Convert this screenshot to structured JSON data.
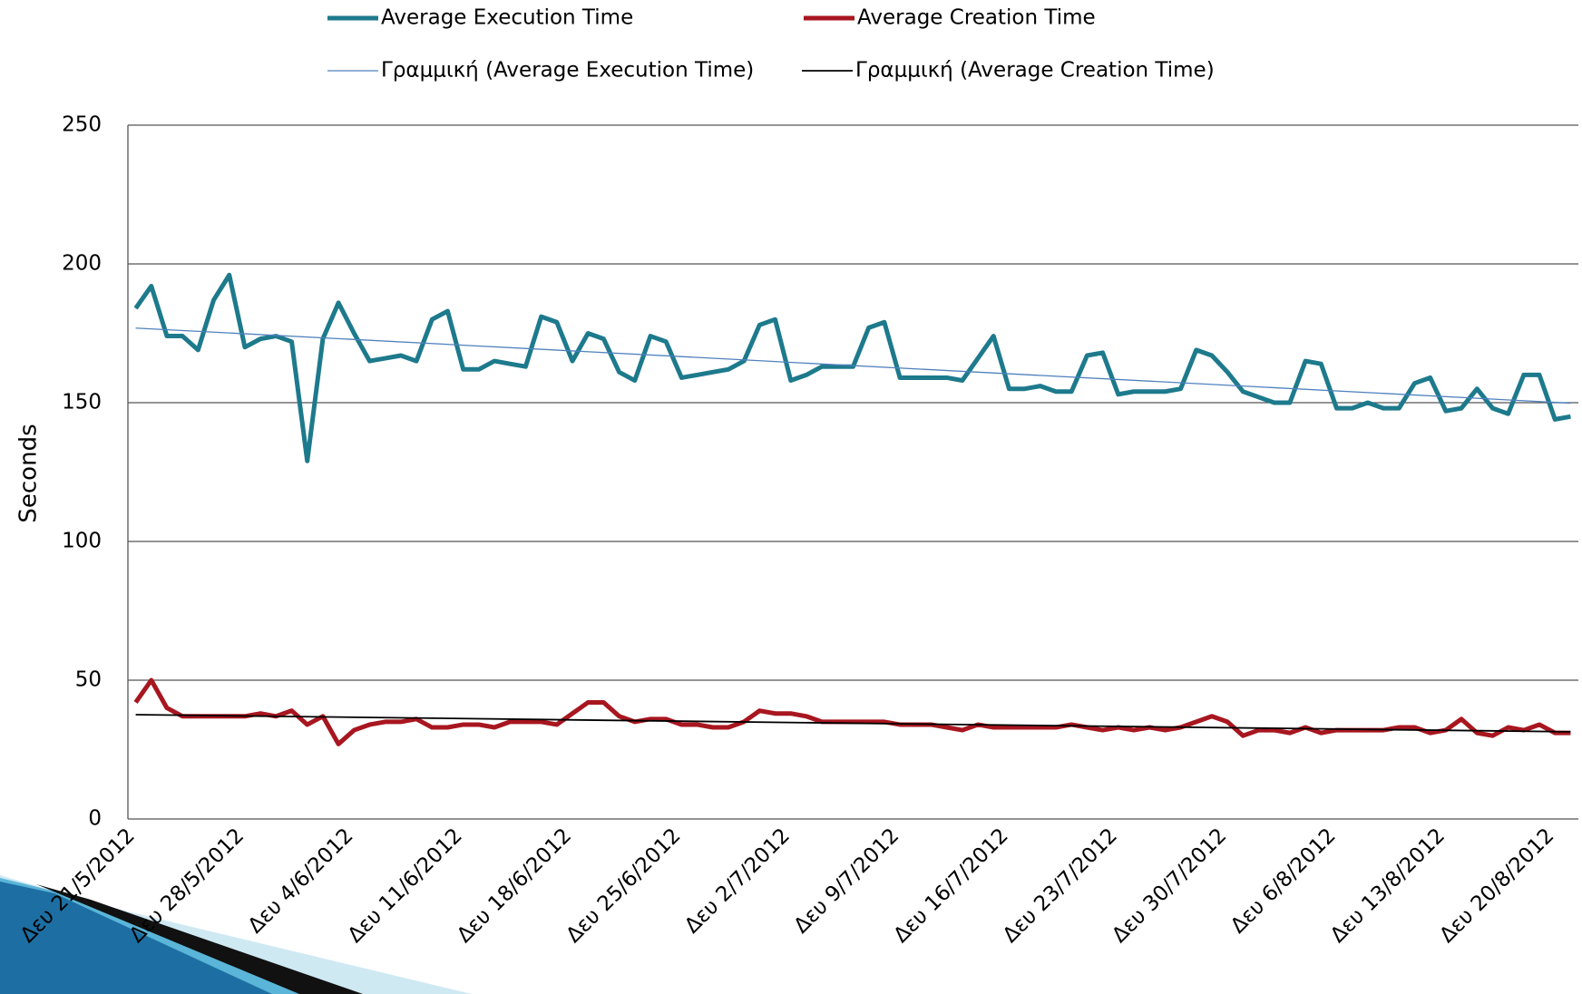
{
  "chart_data": {
    "type": "line",
    "y_label": "Seconds",
    "categories": [
      "Δευ 21/5/2012",
      null,
      null,
      null,
      null,
      null,
      null,
      "Δευ 28/5/2012",
      null,
      null,
      null,
      null,
      null,
      null,
      "Δευ 4/6/2012",
      null,
      null,
      null,
      null,
      null,
      null,
      "Δευ 11/6/2012",
      null,
      null,
      null,
      null,
      null,
      null,
      "Δευ 18/6/2012",
      null,
      null,
      null,
      null,
      null,
      null,
      "Δευ 25/6/2012",
      null,
      null,
      null,
      null,
      null,
      null,
      "Δευ 2/7/2012",
      null,
      null,
      null,
      null,
      null,
      null,
      "Δευ 9/7/2012",
      null,
      null,
      null,
      null,
      null,
      null,
      "Δευ 16/7/2012",
      null,
      null,
      null,
      null,
      null,
      null,
      "Δευ 23/7/2012",
      null,
      null,
      null,
      null,
      null,
      null,
      "Δευ 30/7/2012",
      null,
      null,
      null,
      null,
      null,
      null,
      "Δευ 6/8/2012",
      null,
      null,
      null,
      null,
      null,
      null,
      "Δευ 13/8/2012",
      null,
      null,
      null,
      null,
      null,
      null,
      "Δευ 20/8/2012",
      null
    ],
    "series": [
      {
        "name": "Average Execution Time",
        "color": "#1d7a8c",
        "values": [
          184,
          192,
          174,
          174,
          169,
          187,
          196,
          170,
          173,
          174,
          172,
          129,
          173,
          186,
          175,
          165,
          166,
          167,
          165,
          180,
          183,
          162,
          162,
          165,
          164,
          163,
          181,
          179,
          165,
          175,
          173,
          161,
          158,
          174,
          172,
          159,
          160,
          161,
          162,
          165,
          178,
          180,
          158,
          160,
          163,
          163,
          163,
          177,
          179,
          159,
          159,
          159,
          159,
          158,
          166,
          174,
          155,
          155,
          156,
          154,
          154,
          167,
          168,
          153,
          154,
          154,
          154,
          155,
          169,
          167,
          161,
          154,
          152,
          150,
          150,
          165,
          164,
          148,
          148,
          150,
          148,
          148,
          157,
          159,
          147,
          148,
          155,
          148,
          146,
          160,
          160,
          144,
          145
        ]
      },
      {
        "name": "Average Creation Time",
        "color": "#a8161f",
        "values": [
          42,
          50,
          40,
          37,
          37,
          37,
          37,
          37,
          38,
          37,
          39,
          34,
          37,
          27,
          32,
          34,
          35,
          35,
          36,
          33,
          33,
          34,
          34,
          33,
          35,
          35,
          35,
          34,
          38,
          42,
          42,
          37,
          35,
          36,
          36,
          34,
          34,
          33,
          33,
          35,
          39,
          38,
          38,
          37,
          35,
          35,
          35,
          35,
          35,
          34,
          34,
          34,
          33,
          32,
          34,
          33,
          33,
          33,
          33,
          33,
          34,
          33,
          32,
          33,
          32,
          33,
          32,
          33,
          35,
          37,
          35,
          30,
          32,
          32,
          31,
          33,
          31,
          32,
          32,
          32,
          32,
          33,
          33,
          31,
          32,
          36,
          31,
          30,
          33,
          32,
          34,
          31,
          31
        ]
      }
    ],
    "trendlines": [
      {
        "name": "Γραμμική (Average Execution Time)",
        "color": "#4f81bd",
        "series": 0
      },
      {
        "name": "Γραμμική (Average Creation Time)",
        "color": "#000000",
        "series": 1
      }
    ],
    "ylim": [
      0,
      250
    ],
    "yticks": [
      0,
      50,
      100,
      150,
      200,
      250
    ],
    "grid": true
  }
}
